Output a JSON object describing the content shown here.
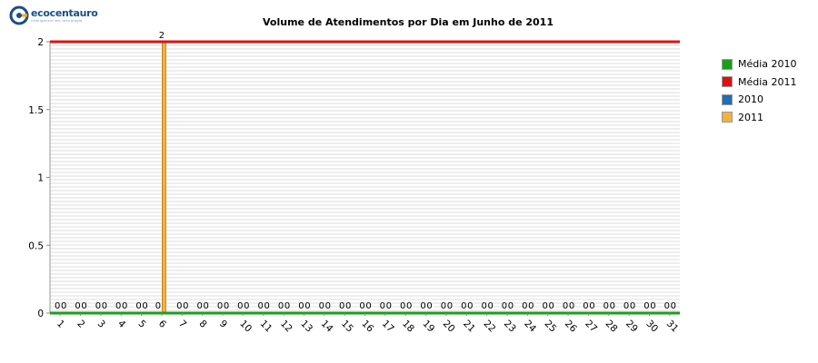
{
  "logo": {
    "text": "ecocentauro",
    "subtext": "inteligencia em tecnologia"
  },
  "chart_data": {
    "type": "bar",
    "title": "Volume de Atendimentos por Dia em Junho de 2011",
    "xlabel": "",
    "ylabel": "",
    "ylim": [
      0,
      2
    ],
    "yticks": [
      "0",
      "0.5",
      "1",
      "1.5",
      "2"
    ],
    "categories": [
      "1",
      "2",
      "3",
      "4",
      "5",
      "6",
      "7",
      "8",
      "9",
      "10",
      "11",
      "12",
      "13",
      "14",
      "15",
      "16",
      "17",
      "18",
      "19",
      "20",
      "21",
      "22",
      "23",
      "24",
      "25",
      "26",
      "27",
      "28",
      "29",
      "30",
      "31"
    ],
    "series": [
      {
        "name": "2010",
        "color": "#1f6fb5",
        "values": [
          0,
          0,
          0,
          0,
          0,
          0,
          0,
          0,
          0,
          0,
          0,
          0,
          0,
          0,
          0,
          0,
          0,
          0,
          0,
          0,
          0,
          0,
          0,
          0,
          0,
          0,
          0,
          0,
          0,
          0,
          0
        ],
        "labels": [
          "0",
          "0",
          "0",
          "0",
          "0",
          "0",
          "0",
          "0",
          "0",
          "0",
          "0",
          "0",
          "0",
          "0",
          "0",
          "0",
          "0",
          "0",
          "0",
          "0",
          "0",
          "0",
          "0",
          "0",
          "0",
          "0",
          "0",
          "0",
          "0",
          "0",
          "0"
        ]
      },
      {
        "name": "2011",
        "color": "#f5b041",
        "values": [
          0,
          0,
          0,
          0,
          0,
          2,
          0,
          0,
          0,
          0,
          0,
          0,
          0,
          0,
          0,
          0,
          0,
          0,
          0,
          0,
          0,
          0,
          0,
          0,
          0,
          0,
          0,
          0,
          0,
          0,
          0
        ],
        "labels": [
          "0",
          "0",
          "0",
          "0",
          "0",
          "2",
          "0",
          "0",
          "0",
          "0",
          "0",
          "0",
          "0",
          "0",
          "0",
          "0",
          "0",
          "0",
          "0",
          "0",
          "0",
          "0",
          "0",
          "0",
          "0",
          "0",
          "0",
          "0",
          "0",
          "0",
          "0"
        ]
      }
    ],
    "lines": [
      {
        "name": "Média 2010",
        "color": "#1a9e1a",
        "value": 0
      },
      {
        "name": "Média 2011",
        "color": "#e01010",
        "value": 2
      }
    ],
    "legend": [
      "Média 2010",
      "Média 2011",
      "2010",
      "2011"
    ],
    "legend_colors": [
      "#1a9e1a",
      "#e01010",
      "#1f6fb5",
      "#f5b041"
    ],
    "legend_position": "right",
    "grid": true
  }
}
